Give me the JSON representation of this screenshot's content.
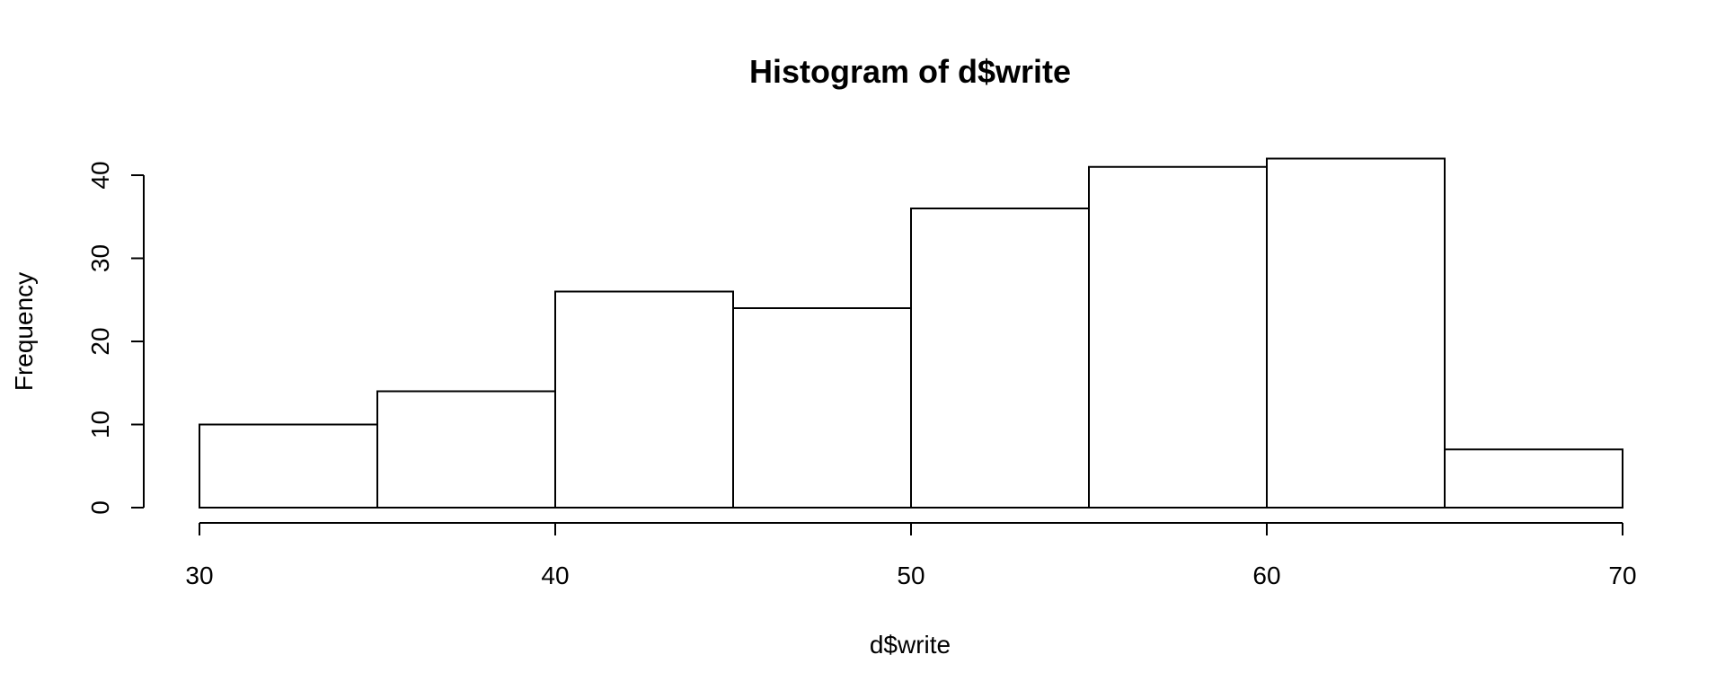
{
  "chart_data": {
    "type": "bar",
    "title": "Histogram of d$write",
    "xlabel": "d$write",
    "ylabel": "Frequency",
    "bins": [
      {
        "start": 30,
        "end": 35,
        "count": 10
      },
      {
        "start": 35,
        "end": 40,
        "count": 14
      },
      {
        "start": 40,
        "end": 45,
        "count": 26
      },
      {
        "start": 45,
        "end": 50,
        "count": 24
      },
      {
        "start": 50,
        "end": 55,
        "count": 36
      },
      {
        "start": 55,
        "end": 60,
        "count": 41
      },
      {
        "start": 60,
        "end": 65,
        "count": 42
      },
      {
        "start": 65,
        "end": 70,
        "count": 7
      }
    ],
    "xlim": [
      30,
      70
    ],
    "ylim": [
      0,
      40
    ],
    "x_ticks": [
      30,
      40,
      50,
      60,
      70
    ],
    "y_ticks": [
      0,
      10,
      20,
      30,
      40
    ],
    "grid": false,
    "bar_fill": "#ffffff",
    "bar_stroke": "#000000"
  }
}
